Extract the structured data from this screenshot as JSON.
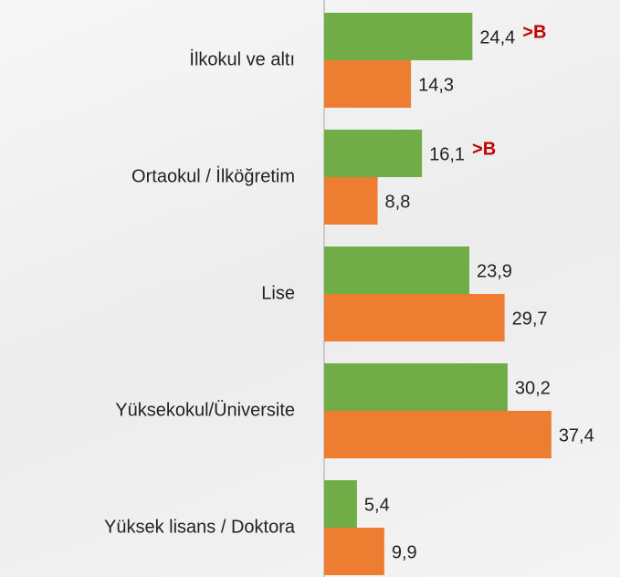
{
  "chart_data": {
    "type": "bar",
    "orientation": "horizontal",
    "categories": [
      "İlkokul ve altı",
      "Ortaokul / İlköğretim",
      "Lise",
      "Yüksekokul/Üniversite",
      "Yüksek lisans / Doktora"
    ],
    "series": [
      {
        "color": "#70ad47",
        "values": [
          24.4,
          16.1,
          23.9,
          30.2,
          5.4
        ],
        "value_labels": [
          "24,4",
          "16,1",
          "23,9",
          "30,2",
          "5,4"
        ]
      },
      {
        "color": "#ed7d31",
        "values": [
          14.3,
          8.8,
          29.7,
          37.4,
          9.9
        ],
        "value_labels": [
          "14,3",
          "8,8",
          "29,7",
          "37,4",
          "9,9"
        ]
      }
    ],
    "annotations": [
      ">B",
      ">B",
      null,
      null,
      null
    ],
    "xlim": [
      0,
      48.7
    ]
  }
}
